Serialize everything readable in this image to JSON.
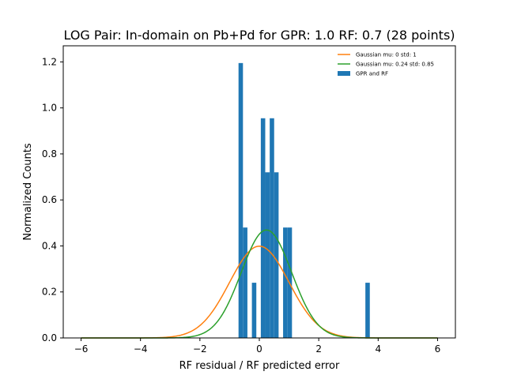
{
  "chart_data": {
    "type": "histogram+line",
    "title": "LOG Pair: In-domain on Pb+Pd for GPR: 1.0 RF: 0.7 (28 points)",
    "xlabel": "RF residual / RF predicted error",
    "ylabel": "Normalized Counts",
    "xlim": [
      -6.6,
      6.6
    ],
    "ylim": [
      0,
      1.27
    ],
    "xticks": [
      -6,
      -4,
      -2,
      0,
      2,
      4,
      6
    ],
    "xtick_labels": [
      "−6",
      "−4",
      "−2",
      "0",
      "2",
      "4",
      "6"
    ],
    "yticks": [
      0.0,
      0.2,
      0.4,
      0.6,
      0.8,
      1.0,
      1.2
    ],
    "ytick_labels": [
      "0.0",
      "0.2",
      "0.4",
      "0.6",
      "0.8",
      "1.0",
      "1.2"
    ],
    "legend_position": "top-right",
    "histogram": {
      "name": "GPR and RF",
      "color": "#1f77b4",
      "bin_width": 0.149,
      "bins": [
        {
          "x0": -0.7,
          "height": 1.195
        },
        {
          "x0": -0.55,
          "height": 0.48
        },
        {
          "x0": -0.25,
          "height": 0.24
        },
        {
          "x0": 0.05,
          "height": 0.955
        },
        {
          "x0": 0.2,
          "height": 0.72
        },
        {
          "x0": 0.35,
          "height": 0.955
        },
        {
          "x0": 0.5,
          "height": 0.72
        },
        {
          "x0": 0.8,
          "height": 0.48
        },
        {
          "x0": 0.95,
          "height": 0.48
        },
        {
          "x0": 3.57,
          "height": 0.24
        }
      ]
    },
    "series": [
      {
        "name": "Gaussian mu: 0 std: 1",
        "mu": 0,
        "sigma": 1,
        "color": "#ff7f0e",
        "x_range": [
          -6,
          6
        ]
      },
      {
        "name": "Gaussian mu: 0.24 std: 0.85",
        "mu": 0.24,
        "sigma": 0.85,
        "color": "#2ca02c",
        "x_range": [
          -6,
          6
        ]
      }
    ]
  }
}
